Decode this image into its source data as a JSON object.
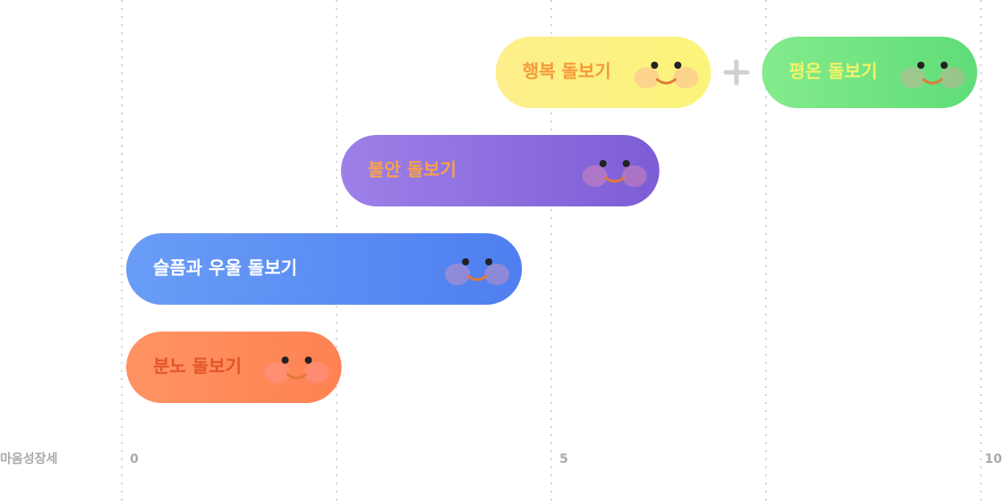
{
  "chart_data": {
    "type": "range_bar",
    "x_axis_label": "마음성장세",
    "xlim": [
      0,
      10
    ],
    "xticks": [
      0,
      5,
      10
    ],
    "grid_lines": [
      0,
      2.5,
      5,
      7.5,
      10
    ],
    "grid": true,
    "rows": [
      [
        {
          "label": "행복 돌보기",
          "start": 4.3,
          "end": 6.9,
          "colors": [
            "#fdef8c",
            "#fbf47a"
          ],
          "text_color": "#f59a3a"
        },
        {
          "label": "평온 돌보기",
          "start": 7.4,
          "end": 10,
          "colors": [
            "#84eb8c",
            "#5fdc78"
          ],
          "text_color": "#f4f36a"
        }
      ],
      [
        {
          "label": "불안 돌보기",
          "start": 2.5,
          "end": 6.3,
          "colors": [
            "#9d80e8",
            "#7d5dd5"
          ],
          "text_color": "#f7a24a"
        }
      ],
      [
        {
          "label": "슬픔과 우울 돌보기",
          "start": 0,
          "end": 4.7,
          "colors": [
            "#6a9df6",
            "#4f7ef0"
          ],
          "text_color": "#ffffff"
        }
      ],
      [
        {
          "label": "분노 돌보기",
          "start": 0,
          "end": 2.6,
          "colors": [
            "#ff9363",
            "#ff8252"
          ],
          "text_color": "#e2552a"
        }
      ]
    ]
  }
}
